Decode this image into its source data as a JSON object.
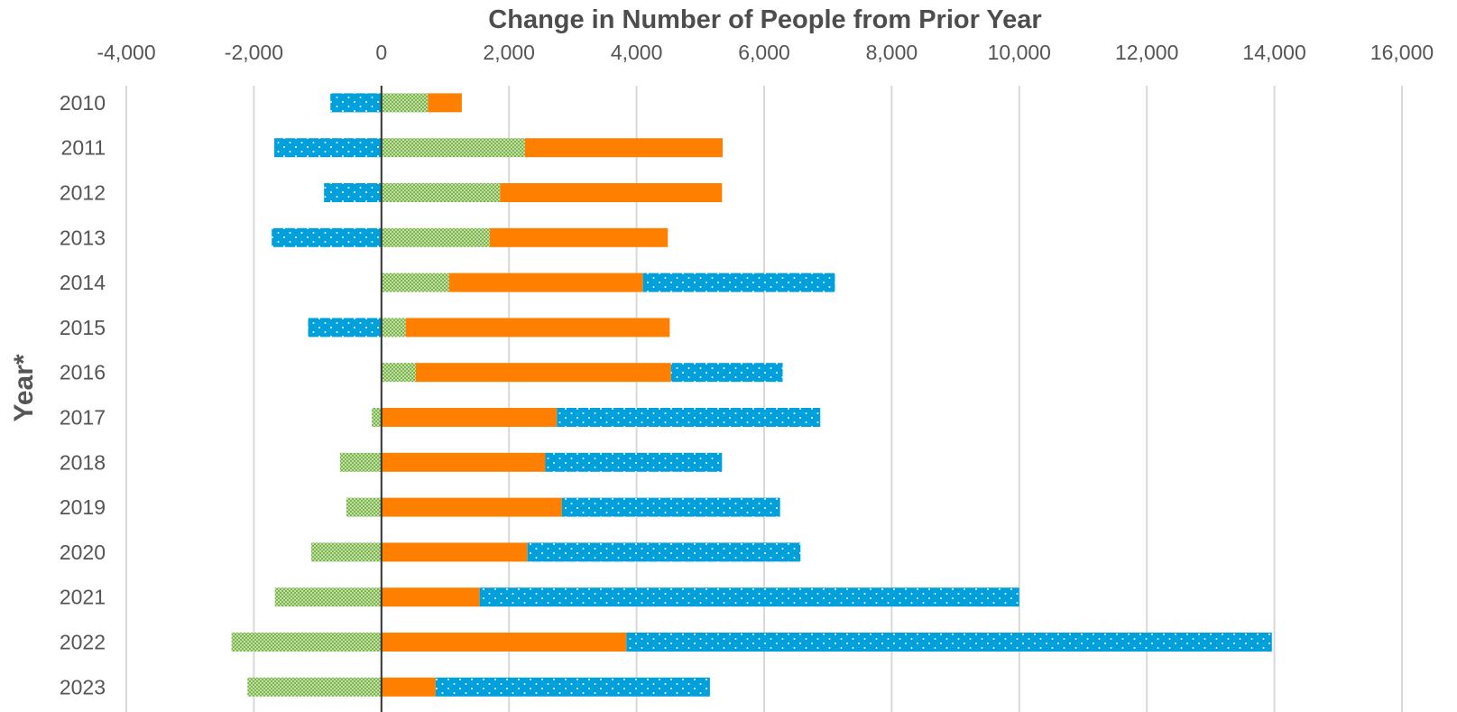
{
  "chart_data": {
    "type": "bar",
    "orientation": "horizontal",
    "stacked": true,
    "title": "Change in Number of People from Prior Year",
    "ylabel": "Year*",
    "xlabel": "",
    "categories": [
      "2010",
      "2011",
      "2012",
      "2013",
      "2014",
      "2015",
      "2016",
      "2017",
      "2018",
      "2019",
      "2020",
      "2021",
      "2022",
      "2023"
    ],
    "xlim": [
      -4000,
      16000
    ],
    "xticks": [
      -4000,
      -2000,
      0,
      2000,
      4000,
      6000,
      8000,
      10000,
      12000,
      14000,
      16000
    ],
    "xtick_labels": [
      "-4,000",
      "-2,000",
      "0",
      "2,000",
      "4,000",
      "6,000",
      "8,000",
      "10,000",
      "12,000",
      "14,000",
      "16,000"
    ],
    "grid": "vertical",
    "legend": "none",
    "series": [
      {
        "name": "",
        "color": "#7ab648",
        "pattern": "checker",
        "values": [
          730,
          2250,
          1860,
          1700,
          1060,
          380,
          540,
          -150,
          -650,
          -550,
          -1100,
          -1670,
          -2350,
          -2100
        ]
      },
      {
        "name": "",
        "color": "#ff7f00",
        "pattern": "solid",
        "values": [
          530,
          3100,
          3480,
          2790,
          3040,
          4140,
          4000,
          2750,
          2570,
          2830,
          2290,
          1540,
          3840,
          850
        ]
      },
      {
        "name": "",
        "color": "#00a0dc",
        "pattern": "dots",
        "values": [
          -800,
          -1680,
          -900,
          -1720,
          3010,
          -1150,
          1750,
          4130,
          2770,
          3420,
          4280,
          8460,
          10120,
          4300
        ]
      }
    ]
  }
}
